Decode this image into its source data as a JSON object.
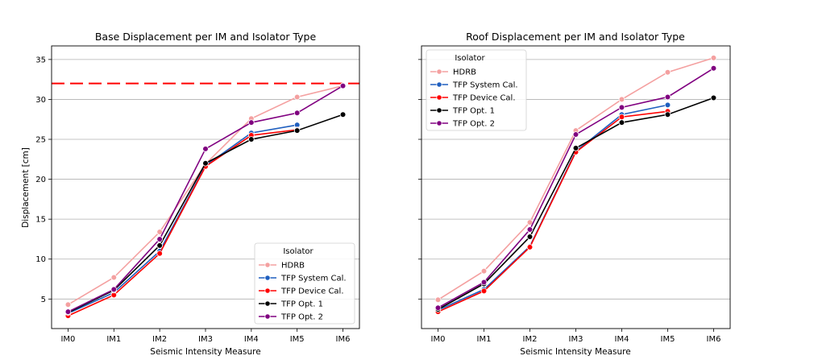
{
  "chart_data": [
    {
      "type": "line",
      "title": "Base Displacement per IM and Isolator Type",
      "xlabel": "Seismic Intensity Measure",
      "ylabel": "Displacement [cm]",
      "categories": [
        "IM0",
        "IM1",
        "IM2",
        "IM3",
        "IM4",
        "IM5",
        "IM6"
      ],
      "ylim": [
        1.3,
        36.7
      ],
      "yticks": [
        5,
        10,
        15,
        20,
        25,
        30,
        35
      ],
      "grid": "y",
      "legend": {
        "title": "Isolator",
        "placement": "lower-right"
      },
      "reference_line": {
        "y": 32.0,
        "color": "#ff0000",
        "style": "dashed"
      },
      "series": [
        {
          "name": "HDRB",
          "color": "#f4a0a0",
          "values": [
            4.3,
            7.7,
            13.4,
            21.9,
            27.6,
            30.3,
            31.7
          ]
        },
        {
          "name": "TFP System Cal.",
          "color": "#1f5fbf",
          "values": [
            3.2,
            5.8,
            11.0,
            21.7,
            25.8,
            26.8,
            null
          ]
        },
        {
          "name": "TFP Device Cal.",
          "color": "#ff0000",
          "values": [
            2.9,
            5.5,
            10.7,
            21.6,
            25.5,
            26.2,
            null
          ]
        },
        {
          "name": "TFP Opt. 1",
          "color": "#000000",
          "values": [
            3.3,
            6.1,
            11.7,
            22.0,
            25.0,
            26.1,
            28.1
          ]
        },
        {
          "name": "TFP Opt. 2",
          "color": "#800080",
          "values": [
            3.4,
            6.2,
            12.5,
            23.8,
            27.1,
            28.3,
            31.7
          ]
        }
      ]
    },
    {
      "type": "line",
      "title": "Roof Displacement per IM and Isolator Type",
      "xlabel": "Seismic Intensity Measure",
      "ylabel": "",
      "categories": [
        "IM0",
        "IM1",
        "IM2",
        "IM3",
        "IM4",
        "IM5",
        "IM6"
      ],
      "ylim": [
        1.3,
        36.7
      ],
      "grid": "y",
      "legend": {
        "title": "Isolator",
        "placement": "upper-left"
      },
      "series": [
        {
          "name": "HDRB",
          "color": "#f4a0a0",
          "values": [
            4.9,
            8.5,
            14.6,
            26.1,
            30.0,
            33.4,
            35.2
          ]
        },
        {
          "name": "TFP System Cal.",
          "color": "#1f5fbf",
          "values": [
            3.6,
            6.2,
            11.6,
            23.5,
            28.1,
            29.3,
            null
          ]
        },
        {
          "name": "TFP Device Cal.",
          "color": "#ff0000",
          "values": [
            3.4,
            6.0,
            11.5,
            23.4,
            27.8,
            28.5,
            null
          ]
        },
        {
          "name": "TFP Opt. 1",
          "color": "#000000",
          "values": [
            3.7,
            6.9,
            12.8,
            23.9,
            27.1,
            28.1,
            30.2
          ]
        },
        {
          "name": "TFP Opt. 2",
          "color": "#800080",
          "values": [
            3.9,
            7.1,
            13.7,
            25.6,
            29.0,
            30.3,
            33.9
          ]
        }
      ]
    }
  ]
}
